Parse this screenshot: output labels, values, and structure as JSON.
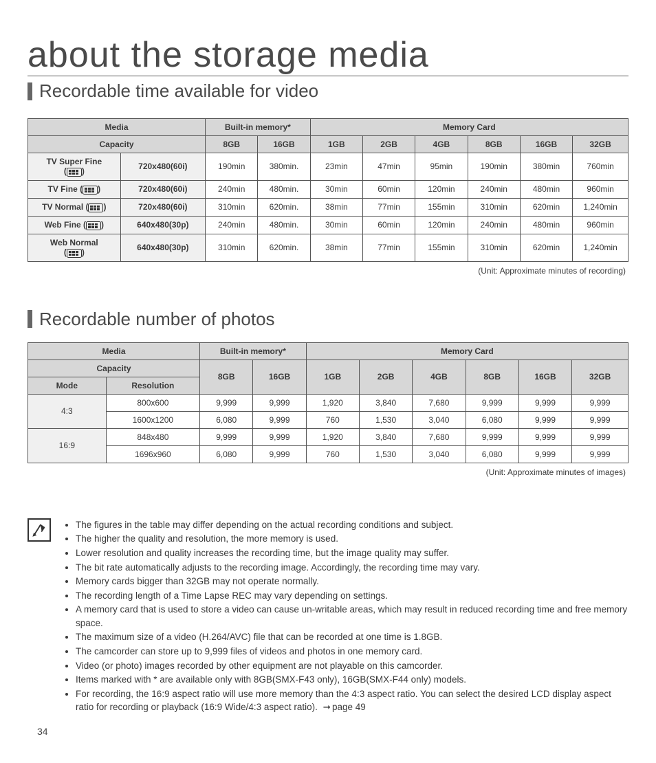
{
  "title": "about the storage media",
  "section1": {
    "heading": "Recordable time available for video",
    "unit_note": "(Unit: Approximate minutes of recording)",
    "headers": {
      "media": "Media",
      "builtin": "Built-in memory*",
      "card": "Memory Card",
      "capacity": "Capacity",
      "bi": [
        "8GB",
        "16GB"
      ],
      "mc": [
        "1GB",
        "2GB",
        "4GB",
        "8GB",
        "16GB",
        "32GB"
      ]
    },
    "rows": [
      {
        "label": "TV Super Fine",
        "icon": "sf",
        "res": "720x480(60i)",
        "bi": [
          "190min",
          "380min."
        ],
        "mc": [
          "23min",
          "47min",
          "95min",
          "190min",
          "380min",
          "760min"
        ]
      },
      {
        "label": "TV Fine",
        "icon": "f",
        "res": "720x480(60i)",
        "bi": [
          "240min",
          "480min."
        ],
        "mc": [
          "30min",
          "60min",
          "120min",
          "240min",
          "480min",
          "960min"
        ]
      },
      {
        "label": "TV Normal",
        "icon": "n",
        "res": "720x480(60i)",
        "bi": [
          "310min",
          "620min."
        ],
        "mc": [
          "38min",
          "77min",
          "155min",
          "310min",
          "620min",
          "1,240min"
        ]
      },
      {
        "label": "Web Fine",
        "icon": "wf",
        "res": "640x480(30p)",
        "bi": [
          "240min",
          "480min."
        ],
        "mc": [
          "30min",
          "60min",
          "120min",
          "240min",
          "480min",
          "960min"
        ]
      },
      {
        "label": "Web Normal",
        "icon": "wn",
        "res": "640x480(30p)",
        "bi": [
          "310min",
          "620min."
        ],
        "mc": [
          "38min",
          "77min",
          "155min",
          "310min",
          "620min",
          "1,240min"
        ]
      }
    ]
  },
  "section2": {
    "heading": "Recordable number of photos",
    "unit_note": "(Unit: Approximate minutes of images)",
    "headers": {
      "media": "Media",
      "builtin": "Built-in memory*",
      "card": "Memory Card",
      "capacity": "Capacity",
      "mode": "Mode",
      "resolution": "Resolution",
      "bi": [
        "8GB",
        "16GB"
      ],
      "mc": [
        "1GB",
        "2GB",
        "4GB",
        "8GB",
        "16GB",
        "32GB"
      ]
    },
    "groups": [
      {
        "mode": "4:3",
        "rows": [
          {
            "res": "800x600",
            "bi": [
              "9,999",
              "9,999"
            ],
            "mc": [
              "1,920",
              "3,840",
              "7,680",
              "9,999",
              "9,999",
              "9,999"
            ]
          },
          {
            "res": "1600x1200",
            "bi": [
              "6,080",
              "9,999"
            ],
            "mc": [
              "760",
              "1,530",
              "3,040",
              "6,080",
              "9,999",
              "9,999"
            ]
          }
        ]
      },
      {
        "mode": "16:9",
        "rows": [
          {
            "res": "848x480",
            "bi": [
              "9,999",
              "9,999"
            ],
            "mc": [
              "1,920",
              "3,840",
              "7,680",
              "9,999",
              "9,999",
              "9,999"
            ]
          },
          {
            "res": "1696x960",
            "bi": [
              "6,080",
              "9,999"
            ],
            "mc": [
              "760",
              "1,530",
              "3,040",
              "6,080",
              "9,999",
              "9,999"
            ]
          }
        ]
      }
    ]
  },
  "notes": [
    "The figures in the table may differ depending on the actual recording conditions and subject.",
    "The higher the quality and resolution, the more memory is used.",
    "Lower resolution and quality increases the recording time, but the image quality may suffer.",
    "The bit rate automatically adjusts to the recording image. Accordingly, the recording time may vary.",
    "Memory cards bigger than 32GB may not operate normally.",
    "The recording length of a Time Lapse REC may vary depending on settings.",
    "A memory card that is used to store a video can cause un-writable areas, which may result in reduced recording time and free memory space.",
    "The maximum size of a video (H.264/AVC) file that can be recorded at one time is 1.8GB.",
    "The camcorder can store up to 9,999 files of videos and photos in one memory card.",
    "Video (or photo) images recorded by other equipment are not playable on this camcorder.",
    "Items marked with * are available only with 8GB(SMX-F43 only), 16GB(SMX-F44 only) models."
  ],
  "note_with_ref": {
    "text": "For recording, the 16:9 aspect ratio will use more memory than the 4:3 aspect ratio. You can select the desired LCD display aspect ratio for recording or playback (16:9 Wide/4:3 aspect ratio).",
    "ref": "page 49"
  },
  "page_number": "34"
}
